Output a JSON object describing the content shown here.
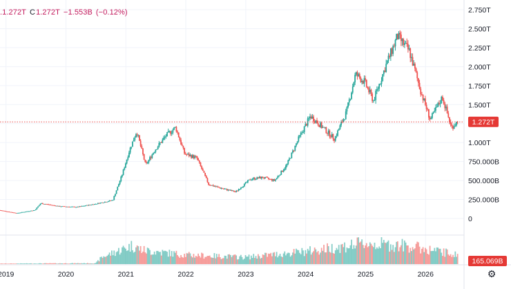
{
  "legend": {
    "open_fragment": ".1.272T",
    "close_label": "C",
    "close_value": "1.272T",
    "change": "−1.553B",
    "change_pct": "(−0.12%)"
  },
  "colors": {
    "up": "#26a69a",
    "down": "#ef5350",
    "price_tag": "#e53935",
    "volume_tag": "#e53935",
    "grid": "#f0f3fa",
    "axis_text": "#131722"
  },
  "chart_data": {
    "type": "candlestick",
    "title": "",
    "xlabel": "",
    "ylabel": "",
    "y_axis_ticks": [
      "2.750T",
      "2.500T",
      "2.250T",
      "2.000T",
      "1.750T",
      "1.500T",
      "1.250T",
      "1.000T",
      "750.000B",
      "500.000B",
      "250.000B",
      "0"
    ],
    "y_tick_values": [
      2750,
      2500,
      2250,
      2000,
      1750,
      1500,
      1250,
      1000,
      750,
      500,
      250,
      0
    ],
    "y_unit": "B",
    "ylim": [
      0,
      2750
    ],
    "x_axis_ticks": [
      "2019",
      "2020",
      "2021",
      "2022",
      "2023",
      "2024",
      "2025",
      "2026"
    ],
    "xlim": [
      2018.9,
      2026.55
    ],
    "last_price_label": "1.272T",
    "last_price": 1272,
    "last_volume_label": "165.069B",
    "anchors": [
      [
        2018.9,
        110
      ],
      [
        2019.2,
        70
      ],
      [
        2019.5,
        110
      ],
      [
        2019.6,
        200
      ],
      [
        2019.9,
        160
      ],
      [
        2020.2,
        150
      ],
      [
        2020.5,
        190
      ],
      [
        2020.8,
        240
      ],
      [
        2020.95,
        560
      ],
      [
        2021.08,
        900
      ],
      [
        2021.2,
        1150
      ],
      [
        2021.35,
        700
      ],
      [
        2021.5,
        900
      ],
      [
        2021.7,
        1100
      ],
      [
        2021.85,
        1200
      ],
      [
        2022.0,
        850
      ],
      [
        2022.2,
        800
      ],
      [
        2022.4,
        450
      ],
      [
        2022.6,
        400
      ],
      [
        2022.85,
        350
      ],
      [
        2023.1,
        520
      ],
      [
        2023.3,
        540
      ],
      [
        2023.5,
        500
      ],
      [
        2023.7,
        700
      ],
      [
        2023.9,
        1050
      ],
      [
        2024.1,
        1350
      ],
      [
        2024.3,
        1200
      ],
      [
        2024.5,
        1050
      ],
      [
        2024.7,
        1400
      ],
      [
        2024.85,
        1900
      ],
      [
        2025.0,
        1800
      ],
      [
        2025.15,
        1550
      ],
      [
        2025.35,
        2000
      ],
      [
        2025.55,
        2400
      ],
      [
        2025.75,
        2200
      ],
      [
        2025.95,
        1650
      ],
      [
        2026.1,
        1300
      ],
      [
        2026.3,
        1600
      ],
      [
        2026.45,
        1200
      ],
      [
        2026.55,
        1272
      ]
    ],
    "volume_anchors": [
      [
        2018.9,
        2
      ],
      [
        2020.5,
        4
      ],
      [
        2020.6,
        30
      ],
      [
        2021.1,
        80
      ],
      [
        2021.3,
        60
      ],
      [
        2022.0,
        40
      ],
      [
        2023.0,
        30
      ],
      [
        2024.0,
        55
      ],
      [
        2025.0,
        90
      ],
      [
        2025.7,
        80
      ],
      [
        2026.55,
        40
      ]
    ]
  }
}
